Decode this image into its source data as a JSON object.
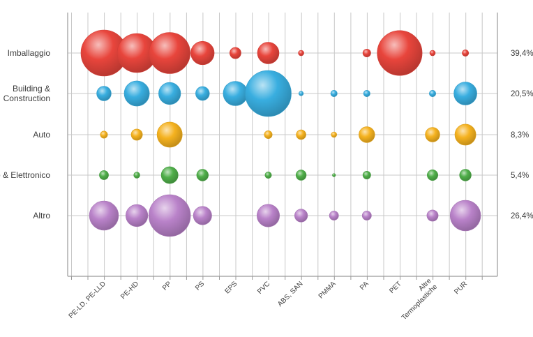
{
  "chart_data": {
    "type": "bubble",
    "title": "",
    "xlabel": "",
    "ylabel": "",
    "categories": [
      "PE-LD, PE-LLD",
      "PE-HD",
      "PP",
      "PS",
      "EPS",
      "PVC",
      "ABS, SAN",
      "PMMA",
      "PA",
      "PET",
      "Altre Termoplastiche",
      "PUR"
    ],
    "category_labels": [
      [
        "PE-LD, PE-LLD"
      ],
      [
        "PE-HD"
      ],
      [
        "PP"
      ],
      [
        "PS"
      ],
      [
        "EPS"
      ],
      [
        "PVC"
      ],
      [
        "ABS, SAN"
      ],
      [
        "PMMA"
      ],
      [
        "PA"
      ],
      [
        "PET"
      ],
      [
        "Altre",
        "Termoplastiche"
      ],
      [
        "PUR"
      ]
    ],
    "series": [
      {
        "label_lines": [
          "Imballaggio"
        ],
        "share": "39,4%",
        "color": "#e8453c",
        "values": [
          100,
          72,
          80,
          26,
          6,
          22,
          1.5,
          0,
          3,
          95,
          1.5,
          2
        ]
      },
      {
        "label_lines": [
          "Building &",
          "Construction"
        ],
        "share": "20,5%",
        "color": "#39aee0",
        "values": [
          10,
          30,
          23,
          9,
          28,
          100,
          1,
          2,
          2,
          0,
          2,
          25
        ]
      },
      {
        "label_lines": [
          "Auto"
        ],
        "share": "8,3%",
        "color": "#f5b21f",
        "values": [
          2.5,
          6,
          30,
          0,
          0,
          3,
          4.5,
          1.5,
          12,
          0,
          10,
          21
        ]
      },
      {
        "label_lines": [
          "Elettrico & Elettronico"
        ],
        "share": "5,4%",
        "color": "#4fae49",
        "values": [
          4,
          1.8,
          13.5,
          6.5,
          0,
          2,
          5,
          0.5,
          3,
          0,
          5.5,
          6.5
        ]
      },
      {
        "label_lines": [
          "Altro"
        ],
        "share": "26,4%",
        "color": "#b982c9",
        "values": [
          40,
          23,
          82,
          16,
          0,
          24,
          8,
          4,
          4,
          0,
          6,
          44
        ]
      }
    ],
    "grid": true,
    "legend": "none"
  }
}
